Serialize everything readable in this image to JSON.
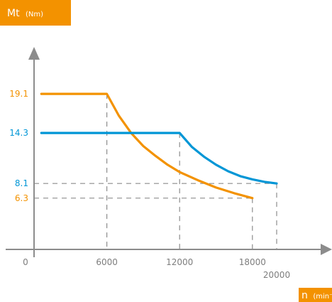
{
  "chart_data": {
    "type": "line",
    "y_badge": {
      "main": "Mt",
      "unit": "(Nm)"
    },
    "x_badge": {
      "main": "n",
      "unit": "(min⁻¹"
    },
    "origin_label": "0",
    "xlim": [
      0,
      22000
    ],
    "ylim": [
      0,
      25
    ],
    "x_ticks": [
      {
        "value": 6000,
        "label": "6000"
      },
      {
        "value": 12000,
        "label": "12000"
      },
      {
        "value": 18000,
        "label": "18000"
      },
      {
        "value": 20000,
        "label": "20000"
      }
    ],
    "y_ticks": [
      {
        "value": 19.1,
        "label": "19.1",
        "color": "#f39200"
      },
      {
        "value": 14.3,
        "label": "14.3",
        "color": "#0096d6"
      },
      {
        "value": 8.1,
        "label": "8.1",
        "color": "#0096d6"
      },
      {
        "value": 6.3,
        "label": "6.3",
        "color": "#f39200"
      }
    ],
    "series": [
      {
        "color": "#f39200",
        "points": [
          [
            600,
            19.1
          ],
          [
            6000,
            19.1
          ],
          [
            7000,
            16.4
          ],
          [
            8000,
            14.3
          ],
          [
            9000,
            12.7
          ],
          [
            10000,
            11.5
          ],
          [
            11000,
            10.4
          ],
          [
            12000,
            9.5
          ],
          [
            13500,
            8.5
          ],
          [
            15000,
            7.6
          ],
          [
            16500,
            6.9
          ],
          [
            18000,
            6.3
          ]
        ]
      },
      {
        "color": "#0096d6",
        "points": [
          [
            600,
            14.3
          ],
          [
            12000,
            14.3
          ],
          [
            13000,
            12.6
          ],
          [
            14000,
            11.4
          ],
          [
            15000,
            10.4
          ],
          [
            16000,
            9.6
          ],
          [
            17000,
            9.0
          ],
          [
            18000,
            8.6
          ],
          [
            19000,
            8.3
          ],
          [
            20000,
            8.1
          ]
        ]
      }
    ],
    "guides": [
      {
        "x": 6000,
        "y": 19.1
      },
      {
        "x": 12000,
        "y": 14.3
      },
      {
        "x": 18000,
        "y": 6.3
      },
      {
        "x": 20000,
        "y": 8.1
      }
    ]
  }
}
